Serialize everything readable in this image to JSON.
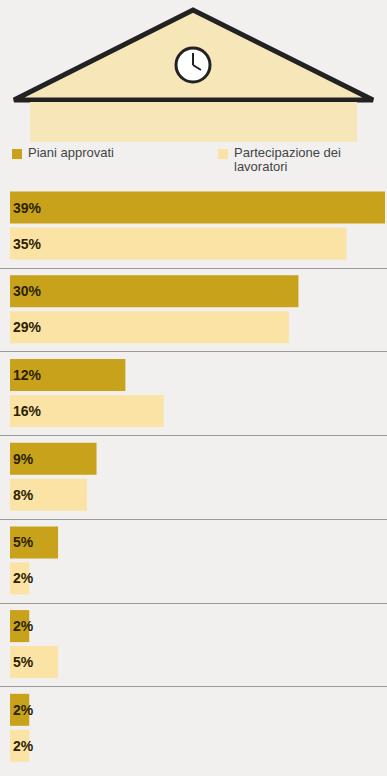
{
  "chart_data": {
    "type": "bar",
    "orientation": "horizontal",
    "categories": [
      null,
      null,
      null,
      null,
      null,
      null,
      null
    ],
    "series": [
      {
        "name": "Piani approvati",
        "color": "#c9a21b",
        "values": [
          39,
          30,
          12,
          9,
          5,
          2,
          2
        ],
        "value_labels": [
          "39%",
          "30%",
          "12%",
          "9%",
          "5%",
          "2%",
          "2%"
        ]
      },
      {
        "name": "Partecipazione dei lavoratori",
        "color": "#fbe3a6",
        "values": [
          35,
          29,
          16,
          8,
          2,
          5,
          2
        ],
        "value_labels": [
          "35%",
          "29%",
          "16%",
          "8%",
          "2%",
          "5%",
          "2%"
        ]
      }
    ],
    "xlim": [
      0,
      39
    ],
    "data_labels": true,
    "tick_labels": false,
    "legend": "top"
  }
}
